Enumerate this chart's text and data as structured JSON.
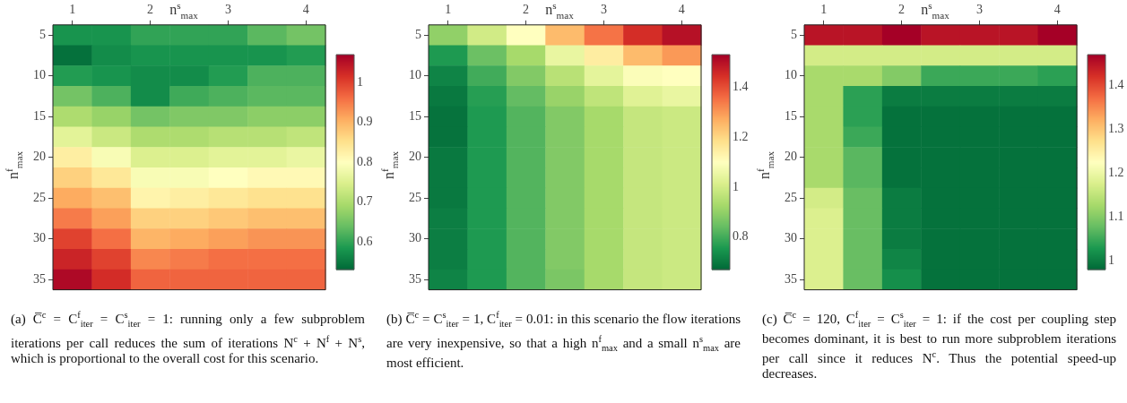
{
  "chart_data": [
    {
      "type": "heatmap",
      "xlabel": "n$^{s}$$_{max}$",
      "ylabel": "n$^{f}$$_{max}$",
      "categories": [
        "1",
        null,
        "2",
        null,
        "3",
        null,
        "4"
      ],
      "y_categories": [
        "5",
        null,
        "10",
        null,
        "15",
        null,
        "20",
        null,
        "25",
        null,
        "30",
        null,
        "35"
      ],
      "cells": [
        [
          0.58,
          0.58,
          0.6,
          0.6,
          0.6,
          0.63,
          0.65
        ],
        [
          0.54,
          0.57,
          0.58,
          0.58,
          0.58,
          0.58,
          0.59
        ],
        [
          0.59,
          0.58,
          0.57,
          0.57,
          0.59,
          0.62,
          0.62
        ],
        [
          0.65,
          0.62,
          0.57,
          0.61,
          0.62,
          0.63,
          0.63
        ],
        [
          0.7,
          0.68,
          0.65,
          0.66,
          0.66,
          0.67,
          0.67
        ],
        [
          0.76,
          0.73,
          0.7,
          0.7,
          0.71,
          0.71,
          0.72
        ],
        [
          0.83,
          0.79,
          0.75,
          0.75,
          0.76,
          0.76,
          0.77
        ],
        [
          0.87,
          0.84,
          0.79,
          0.79,
          0.8,
          0.81,
          0.81
        ],
        [
          0.91,
          0.89,
          0.82,
          0.83,
          0.84,
          0.85,
          0.85
        ],
        [
          0.95,
          0.92,
          0.87,
          0.87,
          0.88,
          0.89,
          0.89
        ],
        [
          1.0,
          0.96,
          0.9,
          0.91,
          0.92,
          0.93,
          0.93
        ],
        [
          1.03,
          1.0,
          0.94,
          0.95,
          0.96,
          0.96,
          0.96
        ],
        [
          1.06,
          1.02,
          0.97,
          0.97,
          0.97,
          0.97,
          0.97
        ]
      ],
      "clim": [
        0.53,
        1.07
      ],
      "cticks": [
        0.6,
        0.7,
        0.8,
        0.9,
        1
      ],
      "annotations": [
        "(a) C̅$^{c}$ = C$^{f}$$_{iter}$ = C$^{s}$$_{iter}$ = 1: running only a few subproblem iterations per call reduces the sum of iterations N$^{c}$ + N$^{f}$ + N$^{s}$, which is proportional to the overall cost for this scenario."
      ]
    },
    {
      "type": "heatmap",
      "xlabel": "n$^{s}$$_{max}$",
      "ylabel": "n$^{f}$$_{max}$",
      "categories": [
        "1",
        null,
        "2",
        null,
        "3",
        null,
        "4"
      ],
      "y_categories": [
        "5",
        null,
        "10",
        null,
        "15",
        null,
        "20",
        null,
        "25",
        null,
        "30",
        null,
        "35"
      ],
      "cells": [
        [
          0.9,
          1.0,
          1.1,
          1.25,
          1.35,
          1.45,
          1.5
        ],
        [
          0.76,
          0.85,
          0.93,
          1.05,
          1.15,
          1.25,
          1.3
        ],
        [
          0.72,
          0.8,
          0.88,
          0.96,
          1.04,
          1.09,
          1.1
        ],
        [
          0.7,
          0.77,
          0.84,
          0.91,
          0.97,
          1.03,
          1.05
        ],
        [
          0.69,
          0.76,
          0.82,
          0.88,
          0.93,
          0.98,
          0.99
        ],
        [
          0.69,
          0.76,
          0.82,
          0.88,
          0.93,
          0.98,
          0.99
        ],
        [
          0.7,
          0.76,
          0.82,
          0.88,
          0.93,
          0.98,
          0.99
        ],
        [
          0.7,
          0.76,
          0.82,
          0.88,
          0.93,
          0.98,
          0.99
        ],
        [
          0.7,
          0.76,
          0.82,
          0.88,
          0.93,
          0.98,
          0.99
        ],
        [
          0.71,
          0.76,
          0.82,
          0.88,
          0.93,
          0.98,
          0.99
        ],
        [
          0.71,
          0.76,
          0.82,
          0.88,
          0.93,
          0.98,
          0.99
        ],
        [
          0.71,
          0.76,
          0.82,
          0.88,
          0.93,
          0.98,
          0.99
        ],
        [
          0.72,
          0.76,
          0.82,
          0.87,
          0.93,
          0.98,
          0.99
        ]
      ],
      "clim": [
        0.67,
        1.53
      ],
      "cticks": [
        0.8,
        1,
        1.2,
        1.4
      ],
      "annotations": [
        "(b) C̅$^{c}$ = C$^{s}$$_{iter}$ = 1, C$^{f}$$_{iter}$ = 0.01: in this scenario the flow iterations are very inexpensive, so that a high n$^{f}$$_{max}$ and a small n$^{s}$$_{max}$ are most efficient."
      ]
    },
    {
      "type": "heatmap",
      "xlabel": "n$^{s}$$_{max}$",
      "ylabel": "n$^{f}$$_{max}$",
      "categories": [
        "1",
        null,
        "2",
        null,
        "3",
        null,
        "4"
      ],
      "y_categories": [
        "5",
        null,
        "10",
        null,
        "15",
        null,
        "20",
        null,
        "25",
        null,
        "30",
        null,
        "35"
      ],
      "cells": [
        [
          1.45,
          1.45,
          1.47,
          1.45,
          1.45,
          1.45,
          1.47
        ],
        [
          1.17,
          1.17,
          1.17,
          1.17,
          1.17,
          1.17,
          1.17
        ],
        [
          1.13,
          1.13,
          1.1,
          1.05,
          1.05,
          1.05,
          1.04
        ],
        [
          1.13,
          1.04,
          1.0,
          1.0,
          1.0,
          1.0,
          1.0
        ],
        [
          1.13,
          1.04,
          0.99,
          0.99,
          0.99,
          0.99,
          0.99
        ],
        [
          1.13,
          1.05,
          0.99,
          0.99,
          0.99,
          0.99,
          0.99
        ],
        [
          1.13,
          1.07,
          0.99,
          0.99,
          0.99,
          0.99,
          0.99
        ],
        [
          1.13,
          1.07,
          0.99,
          0.99,
          0.99,
          0.99,
          0.99
        ],
        [
          1.17,
          1.08,
          1.0,
          0.99,
          0.99,
          0.99,
          0.99
        ],
        [
          1.18,
          1.08,
          1.0,
          0.99,
          0.99,
          0.99,
          0.99
        ],
        [
          1.18,
          1.08,
          1.0,
          0.99,
          0.99,
          0.99,
          0.99
        ],
        [
          1.18,
          1.08,
          1.01,
          0.99,
          0.99,
          0.99,
          0.99
        ],
        [
          1.18,
          1.08,
          1.02,
          0.99,
          0.99,
          0.99,
          0.99
        ]
      ],
      "clim": [
        0.98,
        1.47
      ],
      "cticks": [
        1,
        1.1,
        1.2,
        1.3,
        1.4
      ],
      "annotations": [
        "(c) C̅$^{c}$ = 120, C$^{f}$$_{iter}$ = C$^{s}$$_{iter}$ = 1: if the cost per coupling step becomes dominant, it is best to run more subproblem iterations per call since it reduces N$^{c}$. Thus the potential speed-up decreases."
      ]
    }
  ]
}
